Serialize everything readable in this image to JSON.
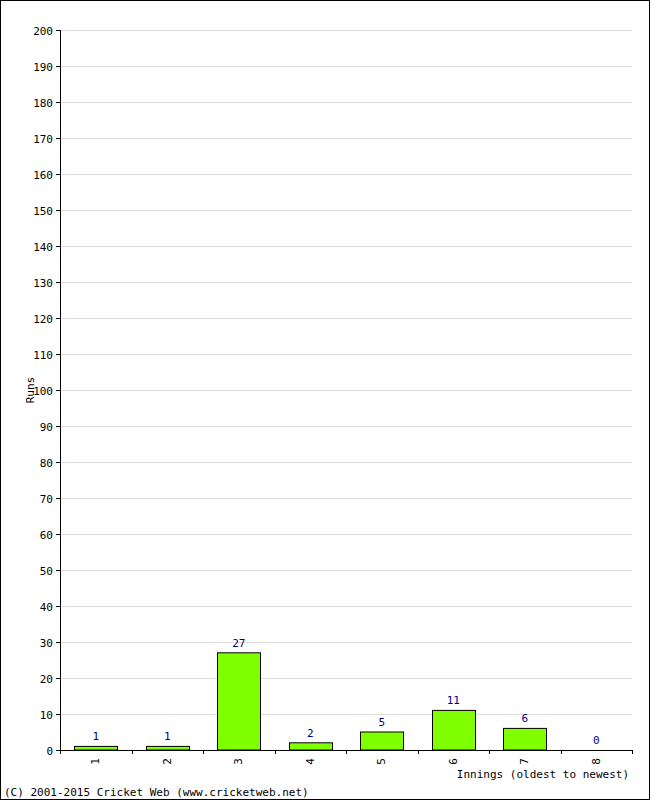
{
  "chart_data": {
    "type": "bar",
    "x_label": "Innings (oldest to newest)",
    "y_label": "Runs",
    "annotations": [
      "(C) 2001-2015 Cricket Web (www.cricketweb.net)"
    ],
    "categories": [
      "1",
      "2",
      "3",
      "4",
      "5",
      "6",
      "7",
      "8"
    ],
    "values": [
      1,
      1,
      27,
      2,
      5,
      11,
      6,
      0
    ],
    "color": "#80ff00",
    "ylim": [
      0,
      200
    ],
    "yticks": [
      0,
      10,
      20,
      30,
      40,
      50,
      60,
      70,
      80,
      90,
      100,
      110,
      120,
      130,
      140,
      150,
      160,
      170,
      180,
      190,
      200
    ],
    "grid": true,
    "data_labels": true
  }
}
